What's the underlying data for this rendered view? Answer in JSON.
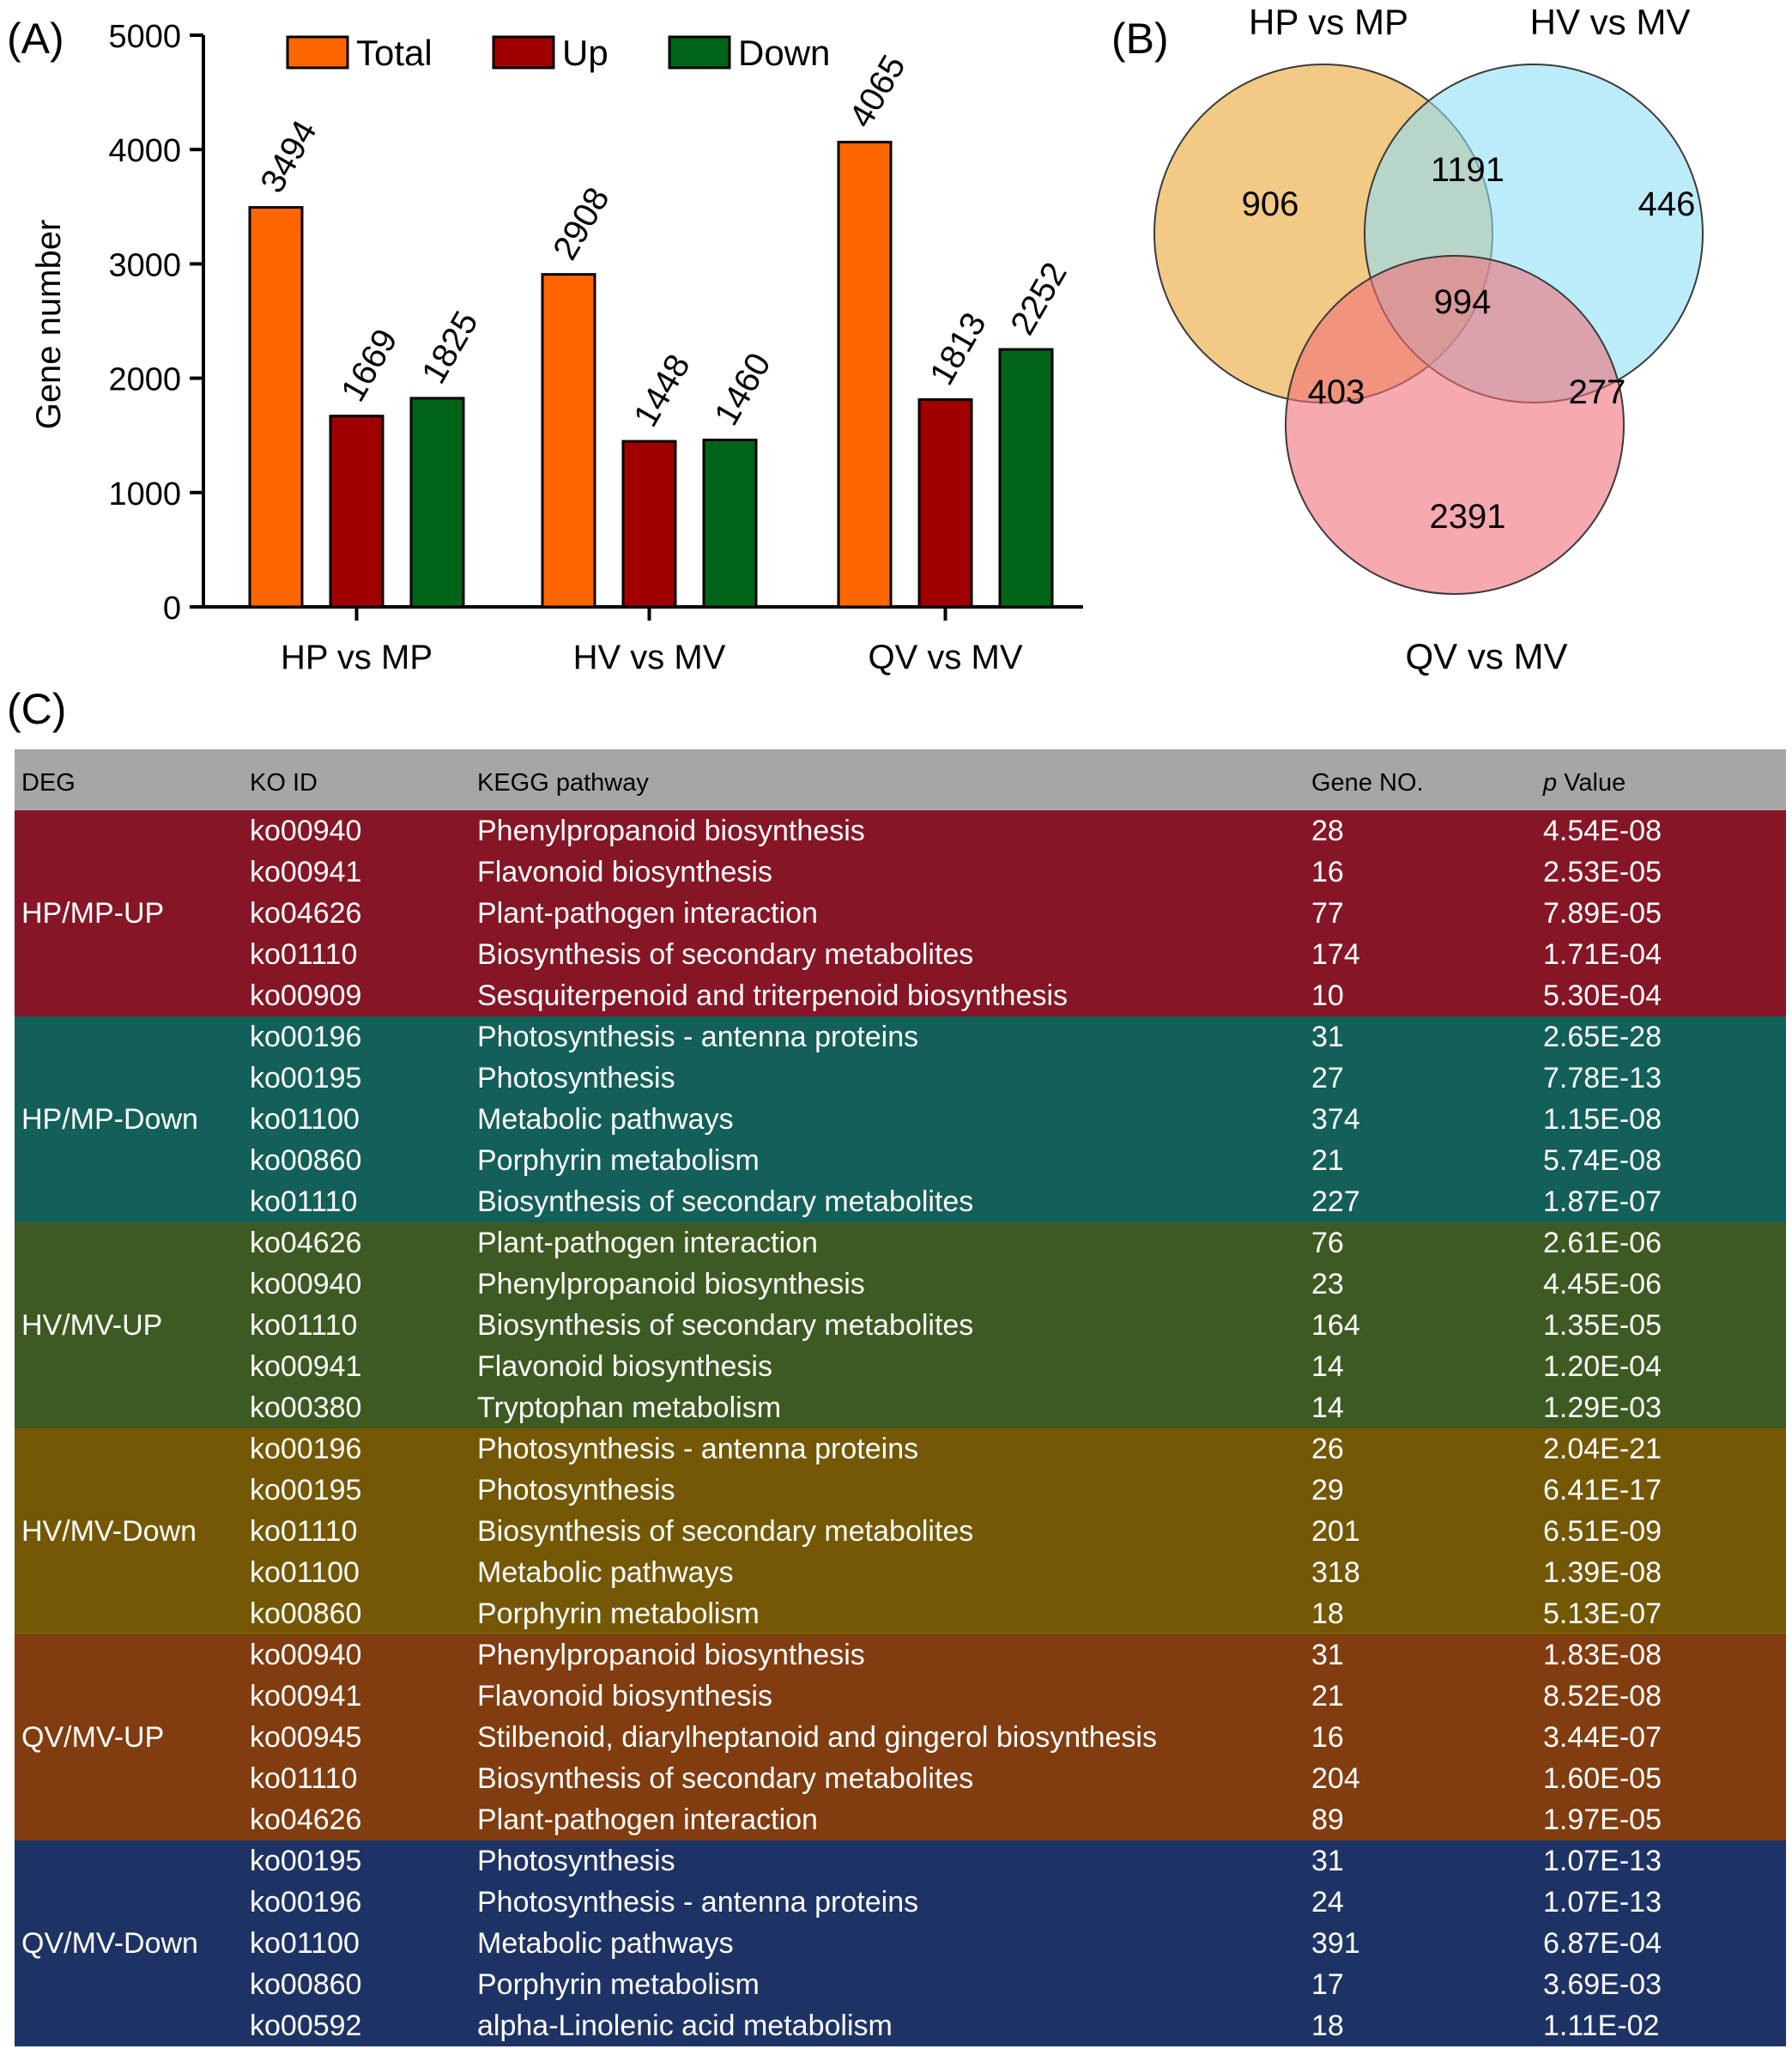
{
  "panels": {
    "a": "(A)",
    "b": "(B)",
    "c": "(C)"
  },
  "chart_data": [
    {
      "type": "bar",
      "title": "",
      "xlabel": "",
      "ylabel": "Gene number",
      "ylim": [
        0,
        5000
      ],
      "yticks": [
        0,
        1000,
        2000,
        3000,
        4000,
        5000
      ],
      "categories": [
        "HP vs MP",
        "HV vs MV",
        "QV vs MV"
      ],
      "series": [
        {
          "name": "Total",
          "color": "#ff6600",
          "values": [
            3494,
            2908,
            4065
          ]
        },
        {
          "name": "Up",
          "color": "#a00000",
          "values": [
            1669,
            1448,
            1813
          ]
        },
        {
          "name": "Down",
          "color": "#006418",
          "values": [
            1825,
            1460,
            2252
          ]
        }
      ],
      "legend_position": "top"
    },
    {
      "type": "venn",
      "sets": [
        {
          "name": "HP vs MP",
          "color": "#f0c070"
        },
        {
          "name": "HV vs MV",
          "color": "#8fe0f6"
        },
        {
          "name": "QV vs MV",
          "color": "#f07078"
        }
      ],
      "regions": [
        {
          "sets": [
            "HP vs MP"
          ],
          "value": 906
        },
        {
          "sets": [
            "HV vs MV"
          ],
          "value": 446
        },
        {
          "sets": [
            "QV vs MV"
          ],
          "value": 2391
        },
        {
          "sets": [
            "HP vs MP",
            "HV vs MV"
          ],
          "value": 1191
        },
        {
          "sets": [
            "HP vs MP",
            "QV vs MV"
          ],
          "value": 403
        },
        {
          "sets": [
            "HV vs MV",
            "QV vs MV"
          ],
          "value": 277
        },
        {
          "sets": [
            "HP vs MP",
            "HV vs MV",
            "QV vs MV"
          ],
          "value": 994
        }
      ]
    }
  ],
  "table": {
    "headers": {
      "deg": "DEG",
      "ko": "KO ID",
      "pathway": "KEGG pathway",
      "gene": "Gene NO.",
      "p": "p",
      "value": " Value"
    },
    "groups": [
      {
        "label": "HP/MP-UP",
        "color": "#861525",
        "rows": [
          {
            "ko": "ko00940",
            "pathway": "Phenylpropanoid biosynthesis",
            "gene": "28",
            "p": "4.54E-08"
          },
          {
            "ko": "ko00941",
            "pathway": "Flavonoid biosynthesis",
            "gene": "16",
            "p": "2.53E-05"
          },
          {
            "ko": "ko04626",
            "pathway": "Plant-pathogen interaction",
            "gene": "77",
            "p": "7.89E-05"
          },
          {
            "ko": "ko01110",
            "pathway": "Biosynthesis of secondary metabolites",
            "gene": "174",
            "p": "1.71E-04"
          },
          {
            "ko": "ko00909",
            "pathway": "Sesquiterpenoid and triterpenoid biosynthesis",
            "gene": "10",
            "p": "5.30E-04"
          }
        ]
      },
      {
        "label": "HP/MP-Down",
        "color": "#135f59",
        "rows": [
          {
            "ko": "ko00196",
            "pathway": "Photosynthesis - antenna proteins",
            "gene": "31",
            "p": "2.65E-28"
          },
          {
            "ko": "ko00195",
            "pathway": "Photosynthesis",
            "gene": "27",
            "p": "7.78E-13"
          },
          {
            "ko": "ko01100",
            "pathway": "Metabolic pathways",
            "gene": "374",
            "p": "1.15E-08"
          },
          {
            "ko": "ko00860",
            "pathway": "Porphyrin metabolism",
            "gene": "21",
            "p": "5.74E-08"
          },
          {
            "ko": "ko01110",
            "pathway": "Biosynthesis of secondary metabolites",
            "gene": "227",
            "p": "1.87E-07"
          }
        ]
      },
      {
        "label": "HV/MV-UP",
        "color": "#3c5a21",
        "rows": [
          {
            "ko": "ko04626",
            "pathway": "Plant-pathogen interaction",
            "gene": "76",
            "p": "2.61E-06"
          },
          {
            "ko": "ko00940",
            "pathway": "Phenylpropanoid biosynthesis",
            "gene": "23",
            "p": "4.45E-06"
          },
          {
            "ko": "ko01110",
            "pathway": "Biosynthesis of secondary metabolites",
            "gene": "164",
            "p": "1.35E-05"
          },
          {
            "ko": "ko00941",
            "pathway": "Flavonoid biosynthesis",
            "gene": "14",
            "p": "1.20E-04"
          },
          {
            "ko": "ko00380",
            "pathway": "Tryptophan metabolism",
            "gene": "14",
            "p": "1.29E-03"
          }
        ]
      },
      {
        "label": "HV/MV-Down",
        "color": "#745805",
        "rows": [
          {
            "ko": "ko00196",
            "pathway": "Photosynthesis - antenna proteins",
            "gene": "26",
            "p": "2.04E-21"
          },
          {
            "ko": "ko00195",
            "pathway": "Photosynthesis",
            "gene": "29",
            "p": "6.41E-17"
          },
          {
            "ko": "ko01110",
            "pathway": "Biosynthesis of secondary metabolites",
            "gene": "201",
            "p": "6.51E-09"
          },
          {
            "ko": "ko01100",
            "pathway": "Metabolic pathways",
            "gene": "318",
            "p": "1.39E-08"
          },
          {
            "ko": "ko00860",
            "pathway": "Porphyrin metabolism",
            "gene": "18",
            "p": "5.13E-07"
          }
        ]
      },
      {
        "label": "QV/MV-UP",
        "color": "#813c0f",
        "rows": [
          {
            "ko": "ko00940",
            "pathway": "Phenylpropanoid biosynthesis",
            "gene": "31",
            "p": "1.83E-08"
          },
          {
            "ko": "ko00941",
            "pathway": "Flavonoid biosynthesis",
            "gene": "21",
            "p": "8.52E-08"
          },
          {
            "ko": "ko00945",
            "pathway": "Stilbenoid, diarylheptanoid and gingerol biosynthesis",
            "gene": "16",
            "p": "3.44E-07"
          },
          {
            "ko": "ko01110",
            "pathway": "Biosynthesis of secondary metabolites",
            "gene": "204",
            "p": "1.60E-05"
          },
          {
            "ko": "ko04626",
            "pathway": "Plant-pathogen interaction",
            "gene": "89",
            "p": "1.97E-05"
          }
        ]
      },
      {
        "label": "QV/MV-Down",
        "color": "#1e3365",
        "rows": [
          {
            "ko": "ko00195",
            "pathway": "Photosynthesis",
            "gene": "31",
            "p": "1.07E-13"
          },
          {
            "ko": "ko00196",
            "pathway": "Photosynthesis - antenna proteins",
            "gene": "24",
            "p": "1.07E-13"
          },
          {
            "ko": "ko01100",
            "pathway": "Metabolic pathways",
            "gene": "391",
            "p": "6.87E-04"
          },
          {
            "ko": "ko00860",
            "pathway": "Porphyrin metabolism",
            "gene": "17",
            "p": "3.69E-03"
          },
          {
            "ko": "ko00592",
            "pathway": "alpha-Linolenic acid metabolism",
            "gene": "18",
            "p": "1.11E-02"
          }
        ]
      }
    ]
  }
}
